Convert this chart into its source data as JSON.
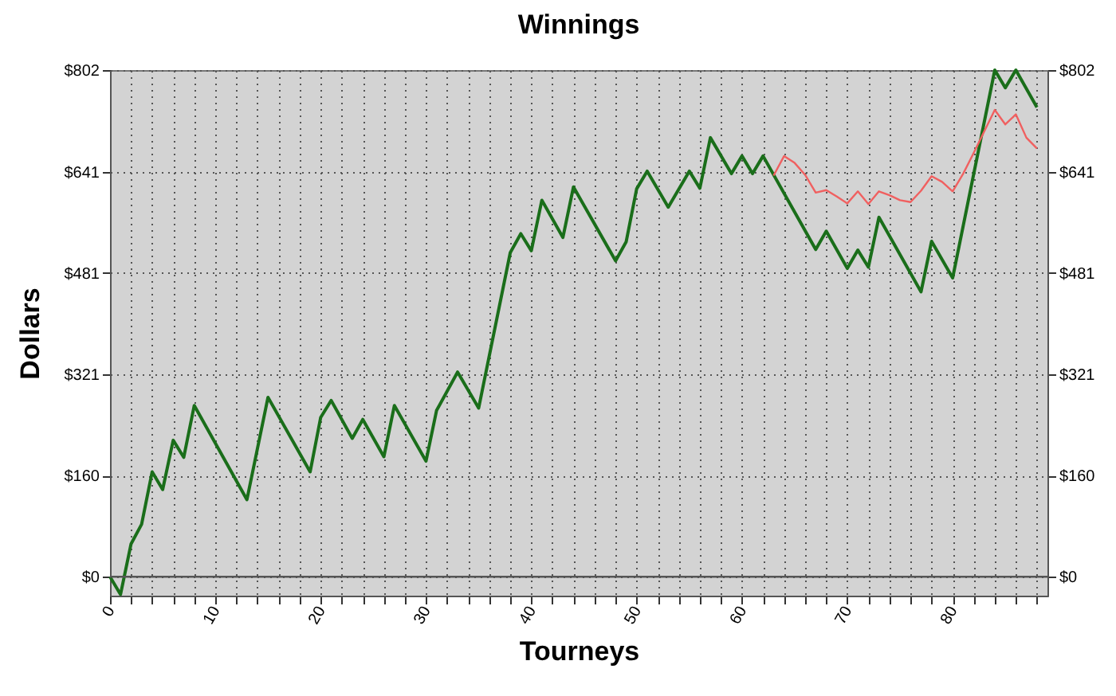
{
  "chart_data": {
    "type": "line",
    "title": "Winnings",
    "xlabel": "Tourneys",
    "ylabel": "Dollars",
    "xlim": [
      0,
      89
    ],
    "xticks": [
      0,
      {
        "value": 2,
        "label": null
      },
      {
        "value": 4,
        "label": null
      },
      {
        "value": 6,
        "label": null
      },
      {
        "value": 8,
        "label": null
      },
      10,
      {
        "value": 12,
        "label": null
      },
      {
        "value": 14,
        "label": null
      },
      {
        "value": 16,
        "label": null
      },
      {
        "value": 18,
        "label": null
      },
      20,
      {
        "value": 22,
        "label": null
      },
      {
        "value": 24,
        "label": null
      },
      {
        "value": 26,
        "label": null
      },
      {
        "value": 28,
        "label": null
      },
      30,
      {
        "value": 32,
        "label": null
      },
      {
        "value": 34,
        "label": null
      },
      {
        "value": 36,
        "label": null
      },
      {
        "value": 38,
        "label": null
      },
      40,
      {
        "value": 42,
        "label": null
      },
      {
        "value": 44,
        "label": null
      },
      {
        "value": 46,
        "label": null
      },
      {
        "value": 48,
        "label": null
      },
      50,
      {
        "value": 52,
        "label": null
      },
      {
        "value": 54,
        "label": null
      },
      {
        "value": 56,
        "label": null
      },
      {
        "value": 58,
        "label": null
      },
      60,
      {
        "value": 62,
        "label": null
      },
      {
        "value": 64,
        "label": null
      },
      {
        "value": 66,
        "label": null
      },
      {
        "value": 68,
        "label": null
      },
      70,
      {
        "value": 72,
        "label": null
      },
      {
        "value": 74,
        "label": null
      },
      {
        "value": 76,
        "label": null
      },
      {
        "value": 78,
        "label": null
      },
      80,
      {
        "value": 82,
        "label": null
      },
      {
        "value": 84,
        "label": null
      },
      {
        "value": 86,
        "label": null
      },
      {
        "value": 88,
        "label": null
      }
    ],
    "ylim": [
      -30,
      802
    ],
    "yticks": [
      {
        "value": 0,
        "label": "$0"
      },
      {
        "value": 160,
        "label": "$160"
      },
      {
        "value": 321,
        "label": "$321"
      },
      {
        "value": 481,
        "label": "$481"
      },
      {
        "value": 641,
        "label": "$641"
      },
      {
        "value": 802,
        "label": "$802"
      }
    ],
    "y2lim": [
      -30,
      802
    ],
    "y2ticks": [
      {
        "value": 0,
        "label": "$0"
      },
      {
        "value": 160,
        "label": "$160"
      },
      {
        "value": 321,
        "label": "$321"
      },
      {
        "value": 481,
        "label": "$481"
      },
      {
        "value": 641,
        "label": "$641"
      },
      {
        "value": 802,
        "label": "$802"
      }
    ],
    "grid": true,
    "line_style": "solid",
    "marker": "none",
    "ref_lines": [
      {
        "axis": "y",
        "value": 0,
        "color": "#555555"
      }
    ],
    "series": [
      {
        "color": "#1a6e1a",
        "x": [
          0,
          1,
          2,
          3,
          4,
          5,
          6,
          7,
          8,
          13,
          15,
          19,
          20,
          21,
          23,
          24,
          26,
          27,
          30,
          31,
          33,
          35,
          38,
          39,
          40,
          41,
          43,
          44,
          48,
          49,
          50,
          51,
          53,
          55,
          56,
          57,
          59,
          60,
          61,
          62,
          67,
          68,
          70,
          71,
          72,
          73,
          77,
          78,
          80,
          84,
          85,
          86,
          88
        ],
        "values": [
          0,
          -28,
          52,
          83,
          166,
          138,
          216,
          189,
          271,
          122,
          284,
          166,
          252,
          279,
          219,
          249,
          190,
          271,
          183,
          263,
          324,
          267,
          513,
          543,
          516,
          596,
          537,
          617,
          500,
          530,
          614,
          642,
          585,
          642,
          615,
          695,
          638,
          666,
          638,
          666,
          518,
          547,
          488,
          517,
          490,
          569,
          451,
          531,
          473,
          802,
          774,
          802,
          743
        ]
      },
      {
        "color": "#f06060",
        "x": [
          63,
          64,
          65,
          66,
          67,
          68,
          69,
          70,
          71,
          72,
          73,
          74,
          75,
          76,
          77,
          78,
          79,
          80,
          81,
          82,
          83,
          84,
          85,
          86,
          87,
          88
        ],
        "values": [
          635,
          666,
          655,
          636,
          608,
          612,
          602,
          591,
          610,
          590,
          610,
          604,
          596,
          593,
          611,
          634,
          625,
          610,
          638,
          671,
          705,
          739,
          716,
          732,
          695,
          678
        ]
      }
    ]
  }
}
